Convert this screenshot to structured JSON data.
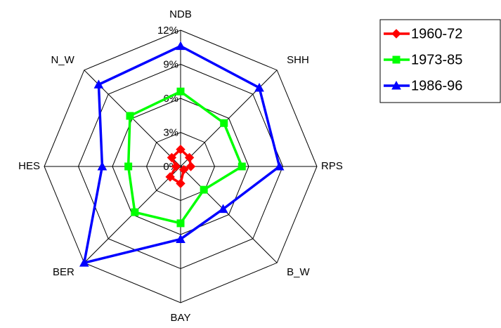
{
  "chart_data": {
    "type": "radar",
    "categories": [
      "NDB",
      "SHH",
      "RPS",
      "B_W",
      "BAY",
      "BER",
      "HES",
      "N_W"
    ],
    "ylim": [
      0,
      12
    ],
    "yticks": [
      {
        "value": 0,
        "label": "0%"
      },
      {
        "value": 3,
        "label": "3%"
      },
      {
        "value": 6,
        "label": "6%"
      },
      {
        "value": 9,
        "label": "9%"
      },
      {
        "value": 12,
        "label": "12%"
      }
    ],
    "grid": true,
    "legend": "upper right",
    "series": [
      {
        "name": "1960-72",
        "color": "#ff0000",
        "marker": "diamond",
        "values": [
          1.5,
          1.1,
          0.9,
          0.4,
          1.5,
          1.3,
          0.4,
          1.1
        ]
      },
      {
        "name": "1973-85",
        "color": "#00ff00",
        "marker": "square",
        "values": [
          6.6,
          5.4,
          5.4,
          2.9,
          5.0,
          5.7,
          4.6,
          6.3
        ]
      },
      {
        "name": "1986-96",
        "color": "#0000ff",
        "marker": "triangle",
        "values": [
          10.6,
          9.8,
          8.7,
          5.3,
          6.4,
          12,
          6.9,
          10.2
        ]
      }
    ]
  }
}
